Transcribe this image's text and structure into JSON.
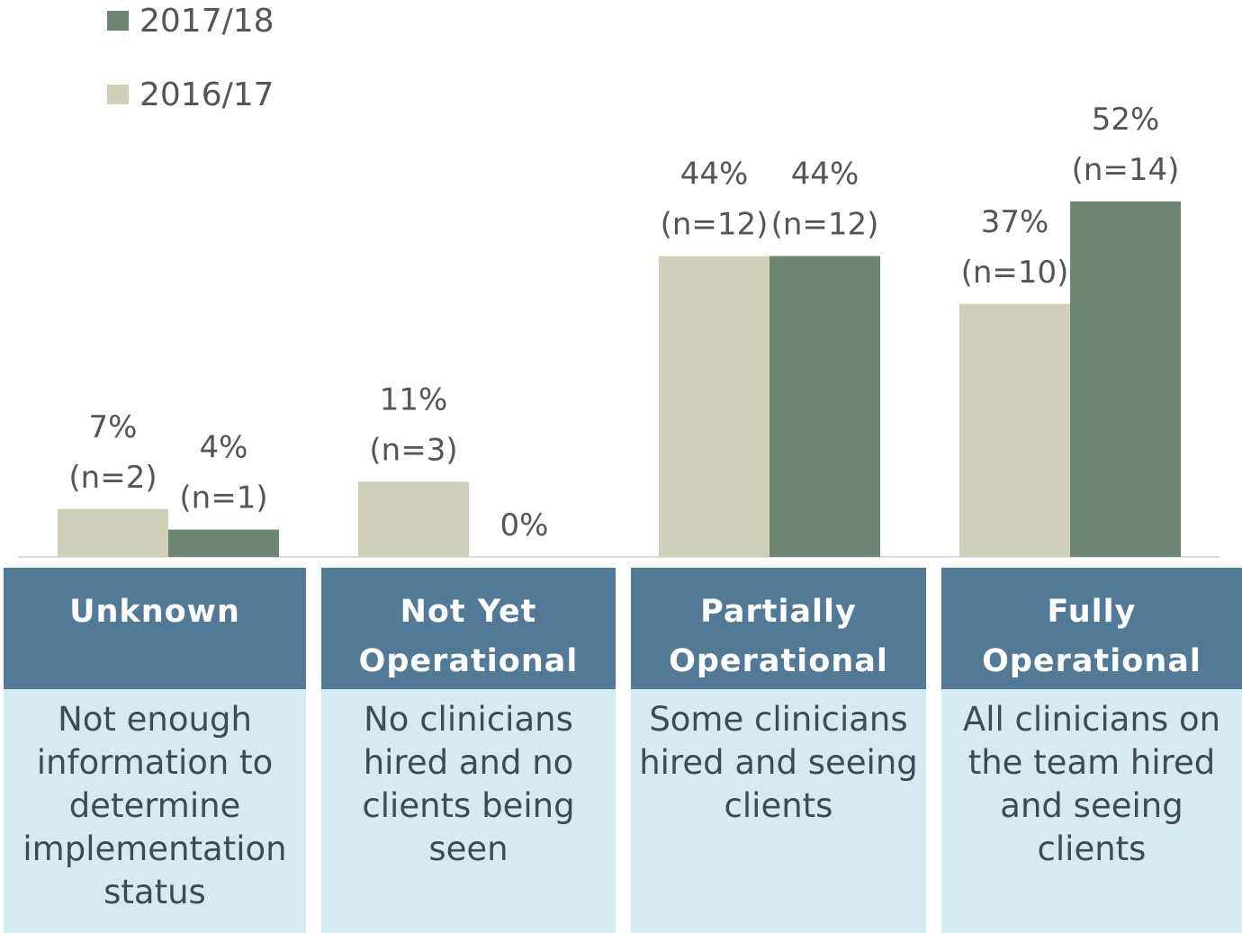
{
  "chart_data": {
    "type": "bar",
    "categories": [
      "Unknown",
      "Not Yet Operational",
      "Partially Operational",
      "Fully Operational"
    ],
    "descriptions": [
      "Not enough information to determine implementation status",
      "No clinicians hired and no clients being seen",
      "Some clinicians hired and seeing clients",
      "All clinicians on the team hired and seeing clients"
    ],
    "series": [
      {
        "name": "2016/17",
        "color": "#d0d0b8",
        "values": [
          7,
          11,
          44,
          37
        ],
        "value_labels": [
          "7%",
          "11%",
          "44%",
          "37%"
        ],
        "n_labels": [
          "(n=2)",
          "(n=3)",
          "(n=12)",
          "(n=10)"
        ]
      },
      {
        "name": "2017/18",
        "color": "#6f8473",
        "values": [
          4,
          0,
          44,
          52
        ],
        "value_labels": [
          "4%",
          "0%",
          "44%",
          "52%"
        ],
        "n_labels": [
          "(n=1)",
          null,
          "(n=12)",
          "(n=14)"
        ]
      }
    ],
    "header_color": "#527a96",
    "description_color": "#d5ebf0"
  }
}
